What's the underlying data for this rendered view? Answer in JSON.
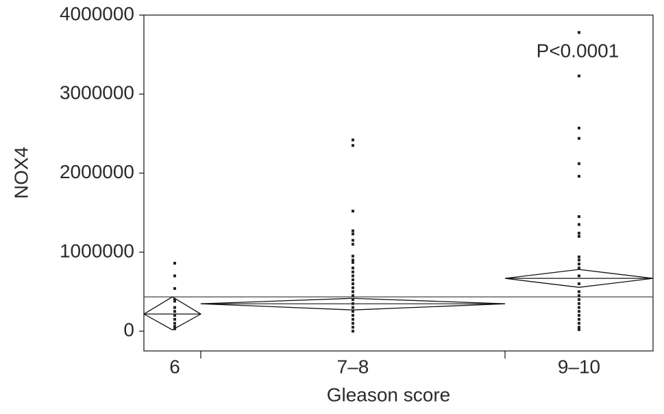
{
  "chart_data": {
    "type": "oneway",
    "ylabel": "NOX4",
    "xlabel": "Gleason score",
    "annotation": "P<0.0001",
    "categories": [
      "6",
      "7–8",
      "9–10"
    ],
    "points": [
      [
        860000,
        700000,
        540000,
        400000,
        380000,
        300000,
        250000,
        200000,
        150000,
        100000,
        60000,
        30000
      ],
      [
        2420000,
        2350000,
        1520000,
        1270000,
        1230000,
        1150000,
        1100000,
        950000,
        900000,
        870000,
        800000,
        750000,
        700000,
        650000,
        600000,
        550000,
        500000,
        450000,
        400000,
        350000,
        300000,
        250000,
        200000,
        150000,
        100000,
        50000,
        0
      ],
      [
        3780000,
        3230000,
        2570000,
        2440000,
        2120000,
        1960000,
        1450000,
        1350000,
        1240000,
        1200000,
        940000,
        900000,
        850000,
        800000,
        700000,
        600000,
        500000,
        450000,
        400000,
        350000,
        300000,
        250000,
        200000,
        150000,
        100000,
        50000,
        20000
      ]
    ],
    "means": [
      217000,
      347000,
      668000
    ],
    "ci_lower": [
      17000,
      269000,
      555000
    ],
    "ci_upper": [
      434000,
      416000,
      781000
    ],
    "grand_mean": 434000,
    "ylim": [
      -250000,
      4000000
    ],
    "yticks": [
      0,
      1000000,
      2000000,
      3000000,
      4000000
    ]
  }
}
